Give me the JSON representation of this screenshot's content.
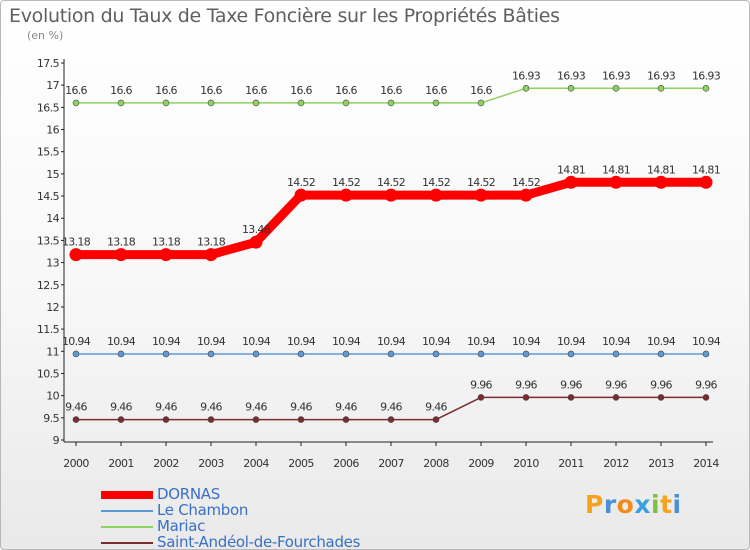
{
  "title": "Evolution du Taux de Taxe Foncière sur les Propriétés Bâties",
  "subtitle": "(en %)",
  "chart_data": {
    "type": "line",
    "title": "Evolution du Taux de Taxe Foncière sur les Propriétés Bâties",
    "ylabel": "(en %)",
    "xlabel": "",
    "x": [
      "2000",
      "2001",
      "2002",
      "2003",
      "2004",
      "2005",
      "2006",
      "2007",
      "2008",
      "2009",
      "2010",
      "2011",
      "2012",
      "2013",
      "2014"
    ],
    "ylim": [
      9,
      17.5
    ],
    "yticks": [
      "9",
      "9.5",
      "10",
      "10.5",
      "11",
      "11.5",
      "12",
      "12.5",
      "13",
      "13.5",
      "14",
      "14.5",
      "15",
      "15.5",
      "16",
      "16.5",
      "17",
      "17.5"
    ],
    "grid": false,
    "legend_position": "bottom-left",
    "series": [
      {
        "name": "DORNAS",
        "color": "#ff0000",
        "values": [
          13.18,
          13.18,
          13.18,
          13.18,
          13.46,
          14.52,
          14.52,
          14.52,
          14.52,
          14.52,
          14.52,
          14.81,
          14.81,
          14.81,
          14.81
        ],
        "labels": [
          "13.18",
          "13.18",
          "13.18",
          "13.18",
          "13.46",
          "14.52",
          "14.52",
          "14.52",
          "14.52",
          "14.52",
          "14.52",
          "14.81",
          "14.81",
          "14.81",
          "14.81"
        ]
      },
      {
        "name": "Le Chambon",
        "color": "#5b9bd5",
        "values": [
          10.94,
          10.94,
          10.94,
          10.94,
          10.94,
          10.94,
          10.94,
          10.94,
          10.94,
          10.94,
          10.94,
          10.94,
          10.94,
          10.94,
          10.94
        ],
        "labels": [
          "10.94",
          "10.94",
          "10.94",
          "10.94",
          "10.94",
          "10.94",
          "10.94",
          "10.94",
          "10.94",
          "10.94",
          "10.94",
          "10.94",
          "10.94",
          "10.94",
          "10.94"
        ]
      },
      {
        "name": "Mariac",
        "color": "#8fd35f",
        "values": [
          16.6,
          16.6,
          16.6,
          16.6,
          16.6,
          16.6,
          16.6,
          16.6,
          16.6,
          16.6,
          16.93,
          16.93,
          16.93,
          16.93,
          16.93
        ],
        "labels": [
          "16.6",
          "16.6",
          "16.6",
          "16.6",
          "16.6",
          "16.6",
          "16.6",
          "16.6",
          "16.6",
          "16.6",
          "16.93",
          "16.93",
          "16.93",
          "16.93",
          "16.93"
        ]
      },
      {
        "name": "Saint-Andéol-de-Fourchades",
        "color": "#7b2c2c",
        "values": [
          9.46,
          9.46,
          9.46,
          9.46,
          9.46,
          9.46,
          9.46,
          9.46,
          9.46,
          9.96,
          9.96,
          9.96,
          9.96,
          9.96,
          9.96
        ],
        "labels": [
          "9.46",
          "9.46",
          "9.46",
          "9.46",
          "9.46",
          "9.46",
          "9.46",
          "9.46",
          "9.46",
          "9.96",
          "9.96",
          "9.96",
          "9.96",
          "9.96",
          "9.96"
        ]
      }
    ]
  },
  "logo": {
    "letters": [
      "P",
      "r",
      "o",
      "x",
      "i",
      "t",
      "i"
    ],
    "colors": [
      "#f7a21b",
      "#4a90d9",
      "#f08c1a",
      "#3aa0e0",
      "#7cc142",
      "#f7a21b",
      "#4a90d9"
    ]
  }
}
